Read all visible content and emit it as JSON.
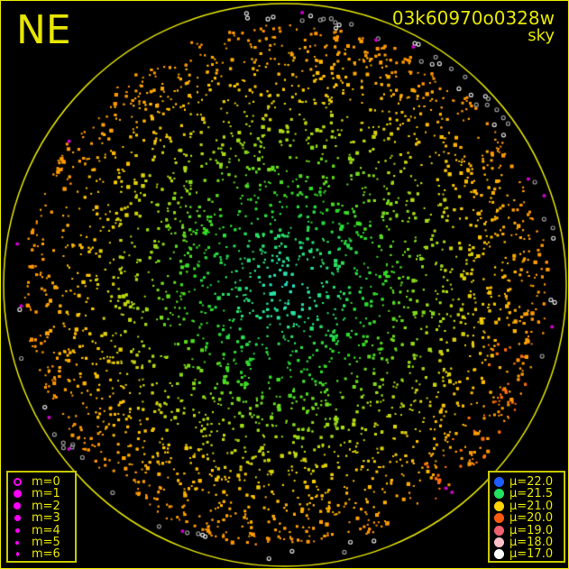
{
  "header": {
    "direction": "NE",
    "title": "03k60970o0328w",
    "subtitle": "sky"
  },
  "colors": {
    "frame": "#e6e600",
    "horizon": "#e6e600",
    "text": "#e6e600",
    "magnitude_marker": "#ff00ff"
  },
  "magnitude_legend": [
    {
      "label": "m=0",
      "style": "ring"
    },
    {
      "label": "m=1",
      "style": "dot"
    },
    {
      "label": "m=2",
      "style": "dot"
    },
    {
      "label": "m=3",
      "style": "dot"
    },
    {
      "label": "m=4",
      "style": "dot"
    },
    {
      "label": "m=5",
      "style": "dot"
    },
    {
      "label": "m=6",
      "style": "dot"
    }
  ],
  "brightness_legend": [
    {
      "label": "μ=22.0",
      "color": "#1e5cff"
    },
    {
      "label": "μ=21.5",
      "color": "#22e060"
    },
    {
      "label": "μ=21.0",
      "color": "#ffd400"
    },
    {
      "label": "μ=20.0",
      "color": "#ff5a10"
    },
    {
      "label": "μ=19.0",
      "color": "#f06070"
    },
    {
      "label": "μ=18.0",
      "color": "#ffc0c8"
    },
    {
      "label": "μ=17.0",
      "color": "#ffffff"
    }
  ]
}
